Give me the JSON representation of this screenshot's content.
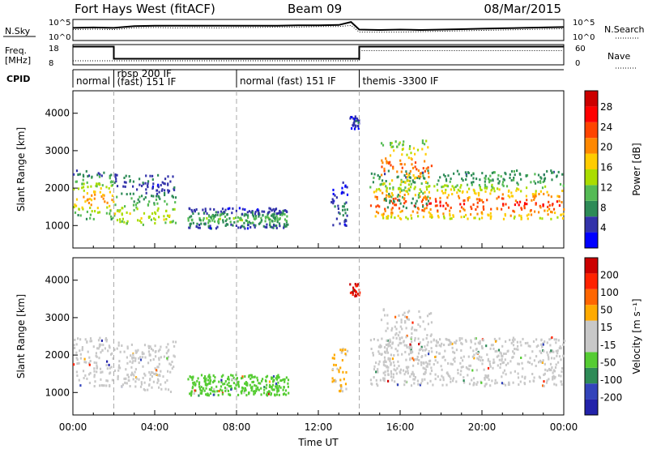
{
  "header": {
    "site": "Fort Hays West (fitACF)",
    "beam": "Beam 09",
    "date": "08/Mar/2015"
  },
  "colors": {
    "frame": "#000000",
    "dashed_marker": "#aaaaaa",
    "power_scale": [
      "#0000ff",
      "#3333aa",
      "#2e8b57",
      "#55bb55",
      "#aadd00",
      "#ffcc00",
      "#ff8800",
      "#ff4400",
      "#ff0000",
      "#cc0000"
    ],
    "velocity_scale": [
      "#2222aa",
      "#3344bb",
      "#2e8b57",
      "#55cc33",
      "#c8c8c8",
      "#c8c8c8",
      "#ffaa00",
      "#ff6600",
      "#ff2200",
      "#cc0000"
    ]
  },
  "chart_data": [
    {
      "type": "line",
      "panel": "nsky",
      "left_label": "N.Sky",
      "right_label": "N.Search",
      "left_ticks": [
        "10^5",
        "10^0"
      ],
      "right_ticks": [
        "10^5",
        "10^0"
      ],
      "x": [
        0,
        1,
        2,
        3,
        4,
        5,
        6,
        7,
        8,
        9,
        10,
        11,
        12,
        13,
        13.6,
        14,
        15,
        16,
        17,
        18,
        19,
        20,
        21,
        22,
        23,
        24
      ],
      "series": [
        {
          "values": [
            3.0,
            3.1,
            3.0,
            3.4,
            3.5,
            3.5,
            3.5,
            3.5,
            3.5,
            3.5,
            3.5,
            3.6,
            3.6,
            3.7,
            4.4,
            2.6,
            2.5,
            2.6,
            2.5,
            2.6,
            2.7,
            2.8,
            2.9,
            3.0,
            3.1,
            3.2
          ],
          "style": "solid"
        },
        {
          "values": [
            2.6,
            2.7,
            2.6,
            3.0,
            3.1,
            3.0,
            3.1,
            3.0,
            3.1,
            3.1,
            3.2,
            3.2,
            3.3,
            3.3,
            3.6,
            2.0,
            2.0,
            2.0,
            2.1,
            2.2,
            2.3,
            2.4,
            2.5,
            2.6,
            2.7,
            2.8
          ],
          "style": "dotted"
        }
      ]
    },
    {
      "type": "line",
      "panel": "frequency",
      "left_label": "Freq. [MHz]",
      "right_label": "Nave",
      "left_ticks": [
        "18",
        "8"
      ],
      "right_ticks": [
        "60",
        "0"
      ],
      "x": [
        0,
        2,
        2,
        14,
        14,
        24
      ],
      "series": [
        {
          "values": [
            17,
            17,
            11,
            11,
            17,
            17
          ],
          "style": "solid"
        },
        {
          "values": [
            10,
            10,
            10,
            10,
            15,
            15
          ],
          "style": "dotted"
        }
      ]
    },
    {
      "type": "table",
      "panel": "cpid",
      "label": "CPID",
      "segments": [
        {
          "start": 0,
          "end": 2,
          "text": "normal"
        },
        {
          "start": 2,
          "end": 8,
          "text": "rbsp 200 IF",
          "text2": "(fast) 151 IF"
        },
        {
          "start": 8,
          "end": 14,
          "text": "normal (fast) 151 IF"
        },
        {
          "start": 14,
          "end": 24,
          "text": "themis -3300 IF"
        }
      ]
    },
    {
      "type": "heatmap",
      "panel": "power",
      "ylabel": "Slant Range [km]",
      "yticks": [
        1000,
        2000,
        3000,
        4000
      ],
      "ylim": [
        400,
        4600
      ],
      "xlim": [
        0,
        24
      ],
      "dashed_times": [
        2,
        8,
        14
      ],
      "colorbar": {
        "title": "Power [dB]",
        "ticks": [
          "4",
          "8",
          "12",
          "16",
          "20",
          "24",
          "28"
        ],
        "range": [
          0,
          30
        ]
      },
      "blobs": [
        {
          "t0": 0,
          "t1": 2,
          "r0": 1200,
          "r1": 2500,
          "core": 1750,
          "value": 18
        },
        {
          "t0": 2,
          "t1": 5,
          "r0": 1050,
          "r1": 2400,
          "core": 1300,
          "value": 14
        },
        {
          "t0": 5.6,
          "t1": 10.5,
          "r0": 950,
          "r1": 1500,
          "core": 1200,
          "value": 10
        },
        {
          "t0": 12.6,
          "t1": 13.4,
          "r0": 1000,
          "r1": 2200,
          "core": 1400,
          "value": 6
        },
        {
          "t0": 13.5,
          "t1": 14,
          "r0": 3600,
          "r1": 3950,
          "core": 3800,
          "value": 5
        },
        {
          "t0": 14.5,
          "t1": 24,
          "r0": 1200,
          "r1": 2500,
          "core": 1600,
          "value": 22
        },
        {
          "t0": 15,
          "t1": 17.5,
          "r0": 1500,
          "r1": 3300,
          "core": 2600,
          "value": 20
        }
      ]
    },
    {
      "type": "heatmap",
      "panel": "velocity",
      "ylabel": "Slant Range [km]",
      "xlabel": "Time UT",
      "yticks": [
        1000,
        2000,
        3000,
        4000
      ],
      "xticks": [
        "00:00",
        "04:00",
        "08:00",
        "12:00",
        "16:00",
        "20:00",
        "00:00"
      ],
      "ylim": [
        400,
        4600
      ],
      "xlim": [
        0,
        24
      ],
      "dashed_times": [
        2,
        8,
        14
      ],
      "colorbar": {
        "title": "Velocity [m s⁻¹]",
        "ticks": [
          "200",
          "100",
          "50",
          "15",
          "-15",
          "-50",
          "-100",
          "-200"
        ],
        "range": [
          -250,
          250
        ]
      },
      "blobs": [
        {
          "t0": 0,
          "t1": 2,
          "r0": 1200,
          "r1": 2500,
          "core": 1750,
          "value": 0
        },
        {
          "t0": 2,
          "t1": 5,
          "r0": 1050,
          "r1": 2400,
          "core": 1300,
          "value": -20
        },
        {
          "t0": 5.6,
          "t1": 10.5,
          "r0": 950,
          "r1": 1500,
          "core": 1200,
          "value": -80
        },
        {
          "t0": 12.6,
          "t1": 13.4,
          "r0": 1000,
          "r1": 2200,
          "core": 1400,
          "value": 60
        },
        {
          "t0": 13.5,
          "t1": 14,
          "r0": 3600,
          "r1": 3950,
          "core": 3800,
          "value": 200
        },
        {
          "t0": 14.5,
          "t1": 24,
          "r0": 1200,
          "r1": 2500,
          "core": 1600,
          "value": 0
        },
        {
          "t0": 15,
          "t1": 17.5,
          "r0": 1500,
          "r1": 3300,
          "core": 2600,
          "value": 0
        }
      ]
    }
  ]
}
